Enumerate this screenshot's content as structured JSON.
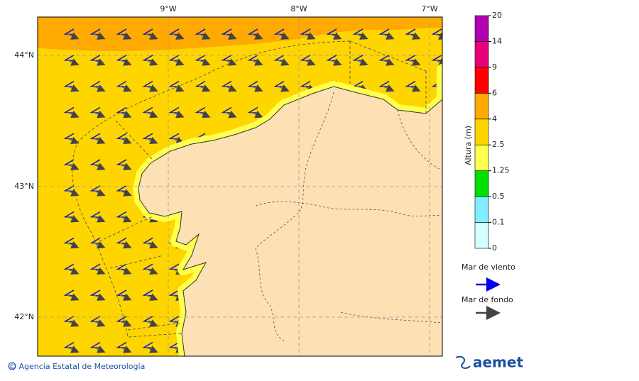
{
  "map": {
    "x_labels": [
      "9°W",
      "8°W",
      "7°W"
    ],
    "y_labels": [
      "44°N",
      "43°N",
      "42°N"
    ]
  },
  "colorbar": {
    "title": "Altura (m)",
    "levels": [
      0,
      0.1,
      0.5,
      1.25,
      2.5,
      4,
      6,
      9,
      14,
      20
    ],
    "colors": [
      "#d4ffff",
      "#80eeff",
      "#00e000",
      "#ffff4d",
      "#ffd500",
      "#ffaa00",
      "#ff0000",
      "#e8007a",
      "#b000b0"
    ]
  },
  "legend": {
    "items": [
      {
        "label": "Mar de viento",
        "color": "#0000ee"
      },
      {
        "label": "Mar de fondo",
        "color": "#444444"
      }
    ]
  },
  "footer": {
    "copyright": "© Agencia Estatal de Meteorología",
    "logo": "aemet"
  }
}
